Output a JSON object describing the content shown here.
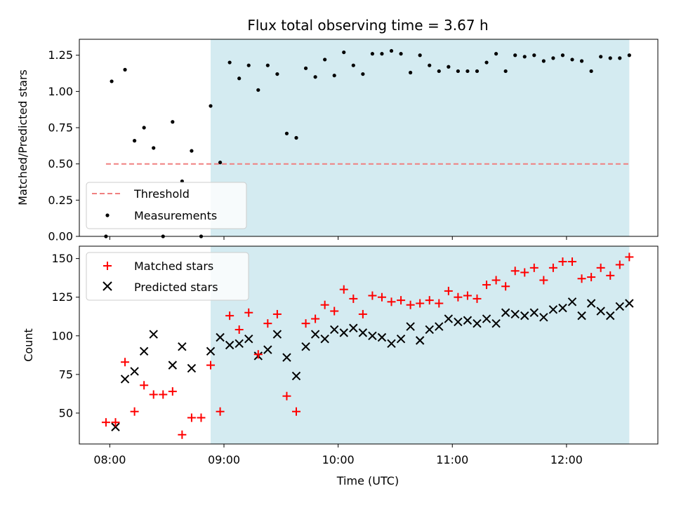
{
  "chart_data": [
    {
      "type": "scatter",
      "title": "Flux total observing time = 3.67 h",
      "ylabel": "Matched/Predicted stars",
      "xlabel": "",
      "ylim": [
        0,
        1.36
      ],
      "xlim": [
        "07:44",
        "12:48"
      ],
      "yticks": [
        0,
        0.25,
        0.5,
        0.75,
        1.0,
        1.25
      ],
      "ytick_labels": [
        "0.00",
        "0.25",
        "0.50",
        "0.75",
        "1.00",
        "1.25"
      ],
      "shaded_span": {
        "start": "08:53",
        "end": "12:33",
        "color": "#d4ebf1"
      },
      "legend": {
        "placement": "lower-left",
        "entries": [
          "Threshold",
          "Measurements"
        ]
      },
      "threshold": {
        "name": "Threshold",
        "value": 0.5,
        "x_start": "07:58",
        "x_end": "12:33",
        "color": "#f08080",
        "style": "dashed"
      },
      "measurements": {
        "name": "Measurements",
        "color": "#000000",
        "points": [
          [
            "07:58",
            0.0
          ],
          [
            "08:01",
            1.07
          ],
          [
            "08:08",
            1.15
          ],
          [
            "08:13",
            0.66
          ],
          [
            "08:18",
            0.75
          ],
          [
            "08:23",
            0.61
          ],
          [
            "08:28",
            0.0
          ],
          [
            "08:33",
            0.79
          ],
          [
            "08:38",
            0.38
          ],
          [
            "08:43",
            0.59
          ],
          [
            "08:48",
            0.0
          ],
          [
            "08:53",
            0.9
          ],
          [
            "08:58",
            0.51
          ],
          [
            "09:03",
            1.2
          ],
          [
            "09:08",
            1.09
          ],
          [
            "09:13",
            1.18
          ],
          [
            "09:18",
            1.01
          ],
          [
            "09:23",
            1.18
          ],
          [
            "09:28",
            1.12
          ],
          [
            "09:33",
            0.71
          ],
          [
            "09:38",
            0.68
          ],
          [
            "09:43",
            1.16
          ],
          [
            "09:48",
            1.1
          ],
          [
            "09:53",
            1.22
          ],
          [
            "09:58",
            1.11
          ],
          [
            "10:03",
            1.27
          ],
          [
            "10:08",
            1.18
          ],
          [
            "10:13",
            1.12
          ],
          [
            "10:18",
            1.26
          ],
          [
            "10:23",
            1.26
          ],
          [
            "10:28",
            1.28
          ],
          [
            "10:33",
            1.26
          ],
          [
            "10:38",
            1.13
          ],
          [
            "10:43",
            1.25
          ],
          [
            "10:48",
            1.18
          ],
          [
            "10:53",
            1.14
          ],
          [
            "10:58",
            1.17
          ],
          [
            "11:03",
            1.14
          ],
          [
            "11:08",
            1.14
          ],
          [
            "11:13",
            1.14
          ],
          [
            "11:18",
            1.2
          ],
          [
            "11:23",
            1.26
          ],
          [
            "11:28",
            1.14
          ],
          [
            "11:33",
            1.25
          ],
          [
            "11:38",
            1.24
          ],
          [
            "11:43",
            1.25
          ],
          [
            "11:48",
            1.21
          ],
          [
            "11:53",
            1.23
          ],
          [
            "11:58",
            1.25
          ],
          [
            "12:03",
            1.22
          ],
          [
            "12:08",
            1.21
          ],
          [
            "12:13",
            1.14
          ],
          [
            "12:18",
            1.24
          ],
          [
            "12:23",
            1.23
          ],
          [
            "12:28",
            1.23
          ],
          [
            "12:33",
            1.25
          ]
        ]
      }
    },
    {
      "type": "scatter",
      "title": "",
      "ylabel": "Count",
      "xlabel": "Time (UTC)",
      "ylim": [
        30,
        158
      ],
      "xlim": [
        "07:44",
        "12:48"
      ],
      "yticks": [
        50,
        75,
        100,
        125,
        150
      ],
      "ytick_labels": [
        "50",
        "75",
        "100",
        "125",
        "150"
      ],
      "xticks": [
        "08:00",
        "09:00",
        "10:00",
        "11:00",
        "12:00"
      ],
      "xtick_labels": [
        "08:00",
        "09:00",
        "10:00",
        "11:00",
        "12:00"
      ],
      "shaded_span": {
        "start": "08:53",
        "end": "12:33",
        "color": "#d4ebf1"
      },
      "legend": {
        "placement": "top-left",
        "entries": [
          "Matched stars",
          "Predicted stars"
        ]
      },
      "series": [
        {
          "name": "Matched stars",
          "marker": "+",
          "color": "#ff0000",
          "points": [
            [
              "07:58",
              44
            ],
            [
              "08:03",
              44
            ],
            [
              "08:08",
              83
            ],
            [
              "08:13",
              51
            ],
            [
              "08:18",
              68
            ],
            [
              "08:23",
              62
            ],
            [
              "08:28",
              62
            ],
            [
              "08:33",
              64
            ],
            [
              "08:38",
              36
            ],
            [
              "08:43",
              47
            ],
            [
              "08:48",
              47
            ],
            [
              "08:53",
              81
            ],
            [
              "08:58",
              51
            ],
            [
              "09:03",
              113
            ],
            [
              "09:08",
              104
            ],
            [
              "09:13",
              115
            ],
            [
              "09:18",
              88
            ],
            [
              "09:23",
              108
            ],
            [
              "09:28",
              114
            ],
            [
              "09:33",
              61
            ],
            [
              "09:38",
              51
            ],
            [
              "09:43",
              108
            ],
            [
              "09:48",
              111
            ],
            [
              "09:53",
              120
            ],
            [
              "09:58",
              116
            ],
            [
              "10:03",
              130
            ],
            [
              "10:08",
              124
            ],
            [
              "10:13",
              114
            ],
            [
              "10:18",
              126
            ],
            [
              "10:23",
              125
            ],
            [
              "10:28",
              122
            ],
            [
              "10:33",
              123
            ],
            [
              "10:38",
              120
            ],
            [
              "10:43",
              121
            ],
            [
              "10:48",
              123
            ],
            [
              "10:53",
              121
            ],
            [
              "10:58",
              129
            ],
            [
              "11:03",
              125
            ],
            [
              "11:08",
              126
            ],
            [
              "11:13",
              124
            ],
            [
              "11:18",
              133
            ],
            [
              "11:23",
              136
            ],
            [
              "11:28",
              132
            ],
            [
              "11:33",
              142
            ],
            [
              "11:38",
              141
            ],
            [
              "11:43",
              144
            ],
            [
              "11:48",
              136
            ],
            [
              "11:53",
              144
            ],
            [
              "11:58",
              148
            ],
            [
              "12:03",
              148
            ],
            [
              "12:08",
              137
            ],
            [
              "12:13",
              138
            ],
            [
              "12:18",
              144
            ],
            [
              "12:23",
              139
            ],
            [
              "12:28",
              146
            ],
            [
              "12:33",
              151
            ]
          ]
        },
        {
          "name": "Predicted stars",
          "marker": "x",
          "color": "#000000",
          "points": [
            [
              "08:03",
              41
            ],
            [
              "08:08",
              72
            ],
            [
              "08:13",
              77
            ],
            [
              "08:18",
              90
            ],
            [
              "08:23",
              101
            ],
            [
              "08:33",
              81
            ],
            [
              "08:38",
              93
            ],
            [
              "08:43",
              79
            ],
            [
              "08:53",
              90
            ],
            [
              "08:58",
              99
            ],
            [
              "09:03",
              94
            ],
            [
              "09:08",
              95
            ],
            [
              "09:13",
              98
            ],
            [
              "09:18",
              87
            ],
            [
              "09:23",
              91
            ],
            [
              "09:28",
              101
            ],
            [
              "09:33",
              86
            ],
            [
              "09:38",
              74
            ],
            [
              "09:43",
              93
            ],
            [
              "09:48",
              101
            ],
            [
              "09:53",
              98
            ],
            [
              "09:58",
              104
            ],
            [
              "10:03",
              102
            ],
            [
              "10:08",
              105
            ],
            [
              "10:13",
              102
            ],
            [
              "10:18",
              100
            ],
            [
              "10:23",
              99
            ],
            [
              "10:28",
              95
            ],
            [
              "10:33",
              98
            ],
            [
              "10:38",
              106
            ],
            [
              "10:43",
              97
            ],
            [
              "10:48",
              104
            ],
            [
              "10:53",
              106
            ],
            [
              "10:58",
              111
            ],
            [
              "11:03",
              109
            ],
            [
              "11:08",
              110
            ],
            [
              "11:13",
              108
            ],
            [
              "11:18",
              111
            ],
            [
              "11:23",
              108
            ],
            [
              "11:28",
              115
            ],
            [
              "11:33",
              114
            ],
            [
              "11:38",
              113
            ],
            [
              "11:43",
              115
            ],
            [
              "11:48",
              112
            ],
            [
              "11:53",
              117
            ],
            [
              "11:58",
              118
            ],
            [
              "12:03",
              122
            ],
            [
              "12:08",
              113
            ],
            [
              "12:13",
              121
            ],
            [
              "12:18",
              116
            ],
            [
              "12:23",
              113
            ],
            [
              "12:28",
              119
            ],
            [
              "12:33",
              121
            ]
          ]
        }
      ]
    }
  ]
}
